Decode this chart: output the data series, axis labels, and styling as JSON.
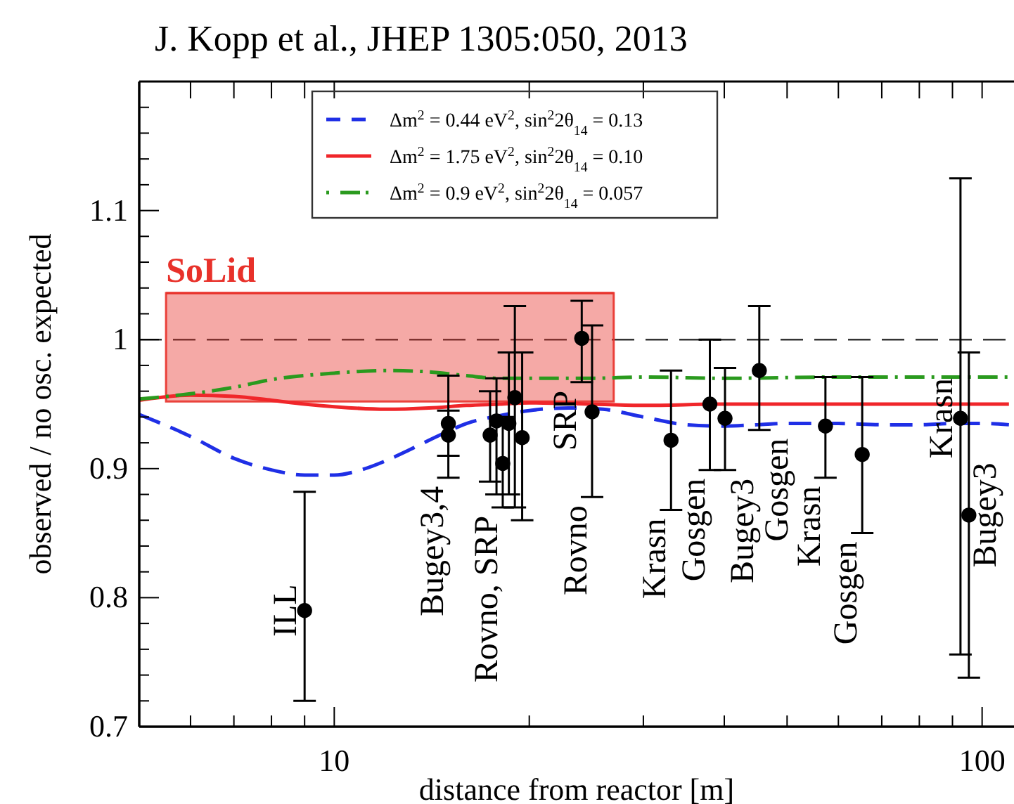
{
  "chart_data": {
    "type": "scatter",
    "title": "J. Kopp et al., JHEP 1305:050, 2013",
    "xlabel": "distance from reactor [m]",
    "ylabel": "observed / no osc. expected",
    "log": "x",
    "xlim": [
      5,
      112
    ],
    "xticks": [
      {
        "value": 5,
        "label": null
      },
      {
        "value": 6,
        "label": null
      },
      {
        "value": 7,
        "label": null
      },
      {
        "value": 8,
        "label": null
      },
      {
        "value": 9,
        "label": null
      },
      10,
      {
        "value": 20,
        "label": null
      },
      {
        "value": 30,
        "label": null
      },
      {
        "value": 40,
        "label": null
      },
      {
        "value": 50,
        "label": null
      },
      {
        "value": 60,
        "label": null
      },
      {
        "value": 70,
        "label": null
      },
      {
        "value": 80,
        "label": null
      },
      {
        "value": 90,
        "label": null
      },
      100
    ],
    "ylim": [
      0.7,
      1.2
    ],
    "yticks": [
      0.7,
      {
        "value": 0.72,
        "label": null
      },
      {
        "value": 0.74,
        "label": null
      },
      {
        "value": 0.76,
        "label": null
      },
      {
        "value": 0.78,
        "label": null
      },
      0.8,
      {
        "value": 0.82,
        "label": null
      },
      {
        "value": 0.84,
        "label": null
      },
      {
        "value": 0.86,
        "label": null
      },
      {
        "value": 0.88,
        "label": null
      },
      0.9,
      {
        "value": 0.92,
        "label": null
      },
      {
        "value": 0.94,
        "label": null
      },
      {
        "value": 0.96,
        "label": null
      },
      {
        "value": 0.98,
        "label": null
      },
      1,
      {
        "value": 1.02,
        "label": null
      },
      {
        "value": 1.04,
        "label": null
      },
      {
        "value": 1.06,
        "label": null
      },
      {
        "value": 1.08,
        "label": null
      },
      1.1,
      {
        "value": 1.12,
        "label": null
      },
      {
        "value": 1.14,
        "label": null
      },
      {
        "value": 1.16,
        "label": null
      },
      {
        "value": 1.18,
        "label": null
      }
    ],
    "grid": false,
    "legend": "top",
    "ref_lines": [
      {
        "axis": "y",
        "value": 1,
        "color": "#333333",
        "line_style": "dashed"
      }
    ],
    "series": [
      {
        "type": "line",
        "name": "SoLid",
        "color": "#e8312a",
        "x": [
          5.5,
          27
        ],
        "values": [
          1.036,
          1.036
        ],
        "lower": [
          0.952,
          0.952
        ],
        "upper": [
          1.036,
          1.036
        ]
      },
      {
        "type": "line",
        "name": "Δm$^{2}$ = 0.44 eV$^{2}$, sin$^{2}$2θ$_{14}$ = 0.13",
        "color": "#1f2fe6",
        "line_style": "dashed",
        "x": [
          5,
          6,
          7,
          8,
          9,
          10,
          11,
          12,
          13,
          14,
          15,
          16,
          18,
          20,
          23,
          26,
          30,
          35,
          40,
          45,
          50,
          60,
          70,
          80,
          90,
          100,
          110
        ],
        "values": [
          0.942,
          0.925,
          0.908,
          0.899,
          0.895,
          0.895,
          0.899,
          0.906,
          0.914,
          0.922,
          0.929,
          0.935,
          0.941,
          0.945,
          0.947,
          0.946,
          0.94,
          0.934,
          0.933,
          0.934,
          0.935,
          0.935,
          0.934,
          0.934,
          0.935,
          0.935,
          0.934
        ]
      },
      {
        "type": "line",
        "name": "Δm$^{2}$ = 1.75 eV$^{2}$, sin$^{2}$2θ$_{14}$ = 0.10",
        "color": "#f0262a",
        "line_style": "solid",
        "x": [
          5,
          6,
          7,
          8,
          9,
          10,
          12,
          14,
          16,
          18,
          20,
          25,
          30,
          40,
          60,
          110
        ],
        "values": [
          0.953,
          0.957,
          0.956,
          0.953,
          0.95,
          0.948,
          0.946,
          0.947,
          0.949,
          0.95,
          0.951,
          0.95,
          0.949,
          0.95,
          0.95,
          0.95
        ]
      },
      {
        "type": "line",
        "name": "Δm$^{2}$ = 0.9 eV$^{2}$, sin$^{2}$2θ$_{14}$ = 0.057",
        "color": "#2a9a1e",
        "line_style": "dashdot",
        "x": [
          5,
          6,
          7,
          8,
          10,
          12,
          14,
          16,
          18,
          20,
          25,
          30,
          40,
          60,
          110
        ],
        "values": [
          0.954,
          0.958,
          0.963,
          0.969,
          0.974,
          0.976,
          0.975,
          0.972,
          0.97,
          0.97,
          0.97,
          0.971,
          0.97,
          0.971,
          0.971
        ]
      },
      {
        "marker": "circle",
        "color": "#000000",
        "x": [
          9,
          15,
          15,
          17.4,
          17.8,
          18.2,
          18.6,
          19,
          19.5,
          24.1,
          25,
          33.1,
          38,
          40.1,
          45.3,
          57.3,
          65.3,
          92.6,
          95.4
        ],
        "values": [
          0.79,
          0.935,
          0.926,
          0.926,
          0.937,
          0.904,
          0.935,
          0.955,
          0.924,
          1.001,
          0.944,
          0.922,
          0.95,
          0.939,
          0.976,
          0.933,
          0.911,
          0.939,
          0.864
        ],
        "errors": [
          [
            0.72,
            0.882
          ],
          [
            0.91,
            0.972
          ],
          [
            0.893,
            0.945
          ],
          [
            0.89,
            0.96
          ],
          [
            0.88,
            0.97
          ],
          [
            0.87,
            0.94
          ],
          [
            0.88,
            0.99
          ],
          [
            0.87,
            1.026
          ],
          [
            0.86,
            0.99
          ],
          [
            0.967,
            1.03
          ],
          [
            0.878,
            1.011
          ],
          [
            0.868,
            0.976
          ],
          [
            0.899,
            1
          ],
          [
            0.899,
            0.978
          ],
          [
            0.93,
            1.026
          ],
          [
            0.893,
            0.971
          ],
          [
            0.85,
            0.971
          ],
          [
            0.756,
            1.125
          ],
          [
            0.738,
            0.99
          ]
        ]
      }
    ],
    "annotations": [
      {
        "text": "ILL",
        "x": 9,
        "y": 0.79
      },
      {
        "text": "Bugey3,4",
        "x": 15,
        "y": 0.926
      },
      {
        "text": "Rovno, SRP",
        "x": 18.2,
        "y": 0.904
      },
      {
        "text": "SRP",
        "x": 24.1,
        "y": 1.001
      },
      {
        "text": "Rovno",
        "x": 25,
        "y": 0.944
      },
      {
        "text": "Krasn",
        "x": 33.1,
        "y": 0.922
      },
      {
        "text": "Gosgen",
        "x": 38,
        "y": 0.95
      },
      {
        "text": "Bugey3",
        "x": 40.1,
        "y": 0.939
      },
      {
        "text": "Gosgen",
        "x": 45.3,
        "y": 0.976
      },
      {
        "text": "Krasn",
        "x": 57.3,
        "y": 0.933
      },
      {
        "text": "Gosgen",
        "x": 65.3,
        "y": 0.911
      },
      {
        "text": "Krasn",
        "x": 92.6,
        "y": 0.939
      },
      {
        "text": "Bugey3",
        "x": 95.4,
        "y": 0.864
      }
    ]
  }
}
